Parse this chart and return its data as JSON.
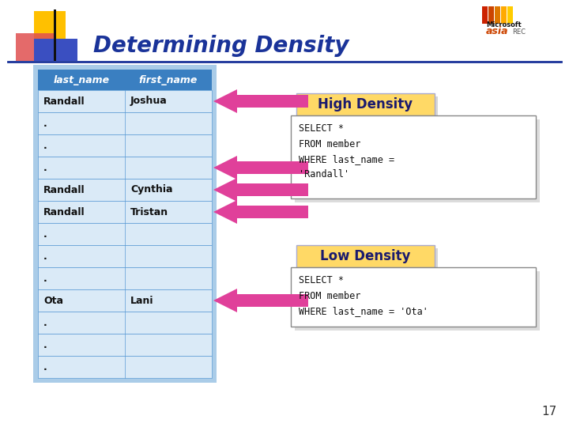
{
  "title": "Determining Density",
  "title_color": "#1a3399",
  "title_fontsize": 20,
  "bg_color": "#ffffff",
  "table_header": [
    "last_name",
    "first_name"
  ],
  "table_rows": [
    [
      "Randall",
      "Joshua"
    ],
    [
      ".",
      ""
    ],
    [
      ".",
      ""
    ],
    [
      ".",
      ""
    ],
    [
      "Randall",
      "Cynthia"
    ],
    [
      "Randall",
      "Tristan"
    ],
    [
      ".",
      ""
    ],
    [
      ".",
      ""
    ],
    [
      ".",
      ""
    ],
    [
      "Ota",
      "Lani"
    ],
    [
      ".",
      ""
    ],
    [
      ".",
      ""
    ],
    [
      ".",
      ""
    ]
  ],
  "table_header_bg": "#3a7fc1",
  "table_row_bg_alt": "#daeaf7",
  "table_row_bg_white": "#ffffff",
  "table_border_color": "#5b9bd5",
  "table_outer_bg": "#aacce8",
  "high_density_label": "High Density",
  "high_density_bg": "#ffd966",
  "high_density_sql": "SELECT *\nFROM member\nWHERE last_name =\n'Randall'",
  "low_density_label": "Low Density",
  "low_density_bg": "#ffd966",
  "low_density_sql": "SELECT *\nFROM member\nWHERE last_name = 'Ota'",
  "arrow_color": "#e0409a",
  "page_number": "17",
  "sql_font": "Courier New",
  "sql_fontsize": 8.5
}
